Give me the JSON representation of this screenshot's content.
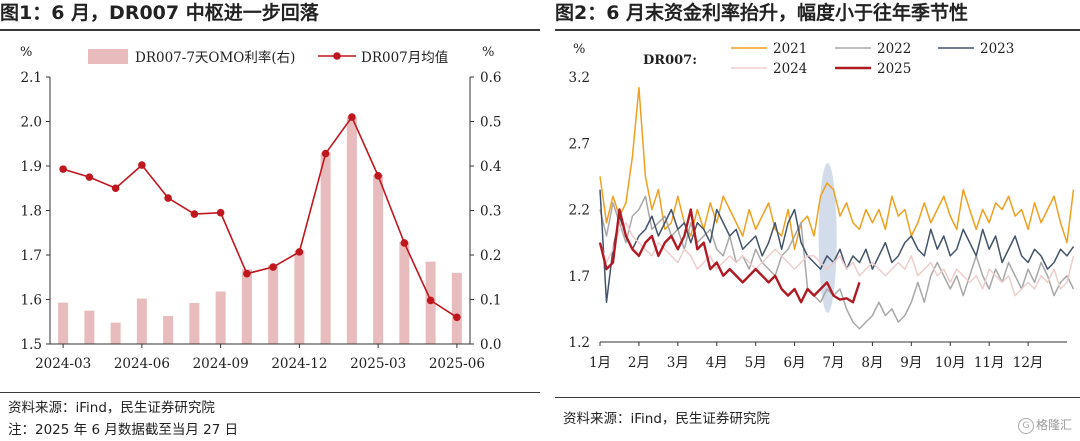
{
  "panel1": {
    "title": "图1：6 月，DR007 中枢进一步回落",
    "source": "资料来源：iFind，民生证券研究院",
    "note": "注：2025 年 6 月数据截至当月 27 日"
  },
  "panel2": {
    "title": "图2：6 月末资金利率抬升，幅度小于往年季节性",
    "source": "资料来源：iFind，民生证券研究院"
  },
  "watermark": "格隆汇",
  "chart_data": [
    {
      "type": "bar+line",
      "title": "6 月，DR007 中枢进一步回落",
      "left_unit": "%",
      "right_unit": "%",
      "ylim_left": [
        1.5,
        2.1
      ],
      "ylim_right": [
        0.0,
        0.6
      ],
      "y_ticks_left": [
        "1.5",
        "1.6",
        "1.7",
        "1.8",
        "1.9",
        "2.0",
        "2.1"
      ],
      "y_ticks_right": [
        "0.0",
        "0.1",
        "0.2",
        "0.3",
        "0.4",
        "0.5",
        "0.6"
      ],
      "categories": [
        "2024-03",
        "2024-04",
        "2024-05",
        "2024-06",
        "2024-07",
        "2024-08",
        "2024-09",
        "2024-10",
        "2024-11",
        "2024-12",
        "2025-01",
        "2025-02",
        "2025-03",
        "2025-04",
        "2025-05",
        "2025-06"
      ],
      "x_tick_labels": [
        "2024-03",
        "2024-06",
        "2024-09",
        "2024-12",
        "2025-03",
        "2025-06"
      ],
      "series": [
        {
          "name": "DR007-7天OMO利率(右)",
          "kind": "bar",
          "axis": "right",
          "color": "#e8bcbc",
          "values": [
            0.093,
            0.075,
            0.048,
            0.102,
            0.063,
            0.092,
            0.118,
            0.168,
            0.178,
            0.21,
            0.43,
            0.51,
            0.38,
            0.23,
            0.185,
            0.16
          ]
        },
        {
          "name": "DR007月均值",
          "kind": "line",
          "axis": "left",
          "color": "#c0161d",
          "values": [
            1.893,
            1.875,
            1.85,
            1.902,
            1.828,
            1.792,
            1.795,
            1.658,
            1.673,
            1.707,
            1.928,
            2.01,
            1.878,
            1.727,
            1.598,
            1.56
          ]
        }
      ]
    },
    {
      "type": "line",
      "title": "6 月末资金利率抬升，幅度小于往年季节性",
      "y_unit": "%",
      "series_label": "DR007:",
      "ylim": [
        1.2,
        3.2
      ],
      "y_ticks": [
        "1.2",
        "1.7",
        "2.2",
        "2.7",
        "3.2"
      ],
      "x_tick_labels": [
        "1月",
        "2月",
        "3月",
        "4月",
        "5月",
        "6月",
        "7月",
        "8月",
        "9月",
        "10月",
        "11月",
        "12月"
      ],
      "highlight": "6月末至7月初",
      "series": [
        {
          "name": "2021",
          "color": "#f0a020",
          "values": [
            2.45,
            2.1,
            2.3,
            2.15,
            2.25,
            2.6,
            3.12,
            2.45,
            2.2,
            2.35,
            2.05,
            2.1,
            2.3,
            2.1,
            2.0,
            2.2,
            2.05,
            2.25,
            2.1,
            2.3,
            2.2,
            2.1,
            2.0,
            2.2,
            2.05,
            2.15,
            2.25,
            2.05,
            2.0,
            2.2,
            1.9,
            2.1,
            2.15,
            2.0,
            2.3,
            2.4,
            2.35,
            2.15,
            2.25,
            2.1,
            2.05,
            2.2,
            2.1,
            2.2,
            2.05,
            2.3,
            2.15,
            2.2,
            2.0,
            2.1,
            2.25,
            2.1,
            2.2,
            2.3,
            2.15,
            2.05,
            2.35,
            2.2,
            2.05,
            2.2,
            2.1,
            2.25,
            2.2,
            2.3,
            2.15,
            2.2,
            2.05,
            2.25,
            2.1,
            2.2,
            2.3,
            2.1,
            1.95,
            2.35
          ]
        },
        {
          "name": "2022",
          "color": "#a8a8a8",
          "values": [
            2.2,
            2.0,
            2.25,
            2.1,
            1.95,
            2.15,
            2.2,
            2.3,
            2.05,
            2.1,
            2.15,
            2.0,
            2.05,
            1.9,
            2.1,
            1.95,
            2.0,
            2.05,
            1.9,
            1.85,
            2.0,
            1.8,
            1.85,
            1.75,
            1.9,
            1.8,
            1.75,
            1.7,
            1.85,
            1.9,
            2.0,
            2.1,
            1.6,
            1.55,
            1.5,
            1.6,
            1.55,
            1.6,
            1.45,
            1.35,
            1.3,
            1.35,
            1.4,
            1.5,
            1.4,
            1.45,
            1.35,
            1.4,
            1.5,
            1.65,
            1.5,
            1.7,
            1.8,
            1.7,
            1.6,
            1.7,
            1.55,
            1.7,
            1.85,
            1.7,
            1.6,
            1.75,
            1.65,
            1.8,
            1.7,
            1.6,
            1.75,
            1.65,
            1.8,
            1.7,
            1.55,
            1.65,
            1.7,
            1.6
          ]
        },
        {
          "name": "2023",
          "color": "#44546a",
          "values": [
            2.35,
            1.5,
            1.9,
            2.15,
            2.0,
            1.9,
            2.0,
            2.05,
            2.15,
            2.0,
            2.1,
            2.2,
            2.05,
            2.1,
            1.95,
            2.1,
            2.05,
            1.95,
            2.2,
            2.1,
            2.0,
            2.05,
            1.9,
            1.95,
            2.0,
            1.85,
            1.95,
            2.1,
            1.9,
            2.1,
            2.2,
            1.95,
            1.85,
            1.8,
            1.75,
            1.85,
            1.8,
            1.9,
            1.75,
            1.85,
            1.8,
            1.9,
            1.75,
            1.85,
            1.95,
            1.8,
            1.85,
            1.95,
            2.0,
            1.9,
            1.85,
            2.05,
            1.9,
            2.0,
            1.85,
            1.9,
            2.05,
            1.95,
            1.85,
            2.05,
            1.9,
            2.0,
            1.8,
            1.9,
            2.0,
            1.85,
            1.8,
            1.9,
            1.85,
            1.75,
            1.8,
            1.9,
            1.85,
            1.92
          ]
        },
        {
          "name": "2024",
          "color": "#eecdcd",
          "values": [
            1.95,
            1.8,
            1.9,
            2.05,
            2.1,
            2.0,
            1.95,
            1.9,
            1.85,
            1.95,
            1.9,
            1.85,
            1.8,
            1.9,
            1.85,
            1.75,
            1.8,
            1.85,
            1.75,
            1.8,
            1.85,
            1.8,
            1.85,
            1.8,
            1.75,
            1.8,
            1.85,
            1.9,
            1.85,
            1.8,
            1.75,
            1.8,
            1.85,
            1.85,
            1.8,
            1.75,
            1.8,
            1.85,
            1.75,
            1.8,
            1.7,
            1.75,
            1.8,
            1.75,
            1.7,
            1.75,
            1.8,
            1.75,
            1.85,
            1.7,
            1.75,
            1.8,
            1.7,
            1.75,
            1.65,
            1.75,
            1.7,
            1.65,
            1.7,
            1.6,
            1.75,
            1.7,
            1.65,
            1.7,
            1.55,
            1.6,
            1.65,
            1.6,
            1.7,
            1.65,
            1.75,
            1.6,
            1.65,
            1.85
          ]
        },
        {
          "name": "2025",
          "color": "#b01a23",
          "values": [
            1.95,
            1.75,
            1.8,
            2.2,
            2.0,
            1.9,
            1.85,
            1.95,
            2.0,
            1.85,
            1.95,
            2.0,
            1.9,
            2.0,
            2.2,
            1.9,
            1.95,
            1.75,
            1.8,
            1.7,
            1.75,
            1.7,
            1.65,
            1.7,
            1.75,
            1.7,
            1.65,
            1.7,
            1.6,
            1.55,
            1.6,
            1.5,
            1.6,
            1.55,
            1.6,
            1.65,
            1.55,
            1.52,
            1.53,
            1.5,
            1.65
          ]
        }
      ]
    }
  ]
}
